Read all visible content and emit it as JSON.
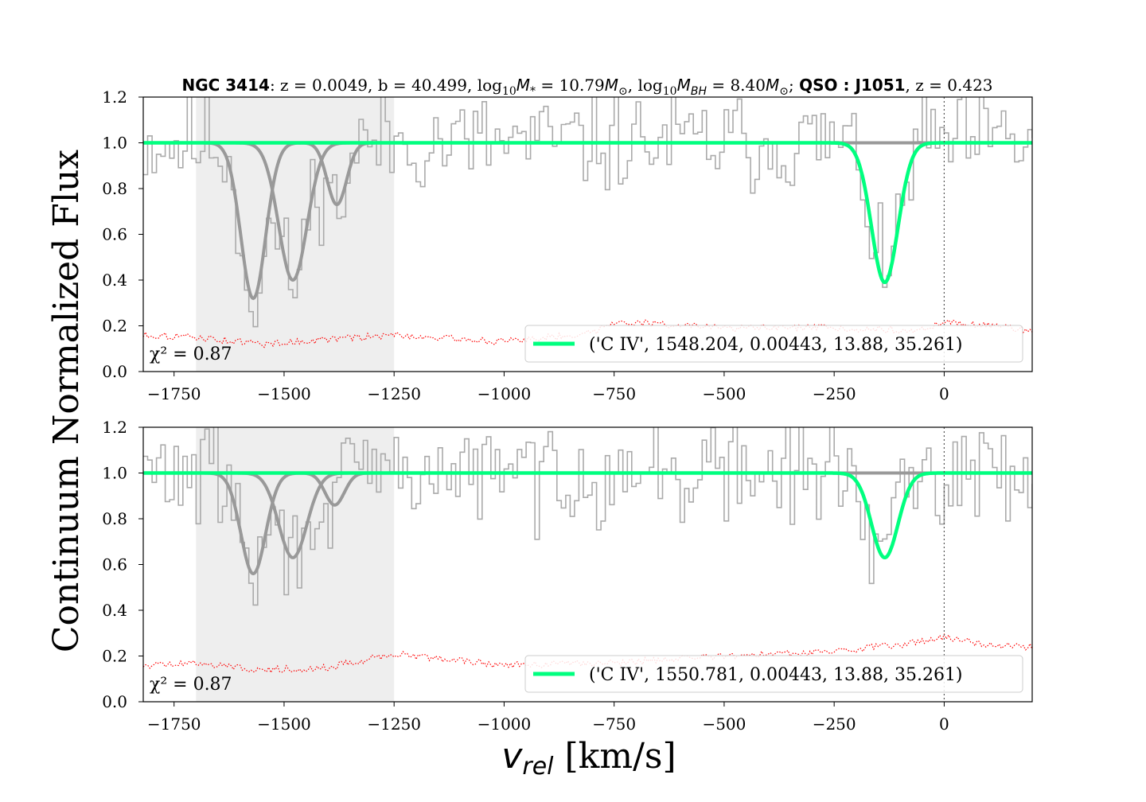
{
  "figure": {
    "title_parts": [
      {
        "text": "NGC 3414",
        "bold": true
      },
      {
        "text": ": z = 0.0049, b = 40.499, log",
        "bold": false
      },
      {
        "text": "10",
        "sub": true
      },
      {
        "text": "M",
        "italic": true
      },
      {
        "text": "*",
        "sub": true
      },
      {
        "text": " = 10.79",
        "bold": false
      },
      {
        "text": "M",
        "italic": true
      },
      {
        "text": "⊙",
        "sub": true
      },
      {
        "text": ", log",
        "bold": false
      },
      {
        "text": "10",
        "sub": true
      },
      {
        "text": "M",
        "italic": true
      },
      {
        "text": "BH",
        "sub": true,
        "italic": true
      },
      {
        "text": " = 8.40",
        "bold": false
      },
      {
        "text": "M",
        "italic": true
      },
      {
        "text": "⊙",
        "sub": true
      },
      {
        "text": "; ",
        "bold": false
      },
      {
        "text": "QSO : J1051",
        "bold": true
      },
      {
        "text": ", z = 0.423",
        "bold": false
      }
    ],
    "ylabel": "Continuum Normalized Flux",
    "xlabel_var": "v",
    "xlabel_sub": "rel",
    "xlabel_unit": " [km/s]"
  },
  "colors": {
    "data_step": "#aaaaaa",
    "component": "#999999",
    "fit": "#00ff7f",
    "error": "#ff0000",
    "shade": "#eeeeee",
    "axis": "#000000"
  },
  "chart_data": [
    {
      "type": "line",
      "xlim": [
        -1820,
        200
      ],
      "ylim": [
        0.0,
        1.2
      ],
      "xticks": [
        -1750,
        -1500,
        -1250,
        -1000,
        -750,
        -500,
        -250,
        0
      ],
      "xtick_labels": [
        "−1750",
        "−1500",
        "−1250",
        "−1000",
        "−750",
        "−500",
        "−250",
        "0"
      ],
      "yticks": [
        0.0,
        0.2,
        0.4,
        0.6,
        0.8,
        1.0,
        1.2
      ],
      "ytick_labels": [
        "0.0",
        "0.2",
        "0.4",
        "0.6",
        "0.8",
        "1.0",
        "1.2"
      ],
      "shaded_range": [
        -1700,
        -1250
      ],
      "vline_x": 0,
      "chi2_label": "χ² = 0.87",
      "legend_label": "('C IV', 1548.204, 0.00443, 13.88, 35.261)",
      "legend_loc": "lower right",
      "components": [
        {
          "center": -1570,
          "depth": 0.68,
          "sigma": 28
        },
        {
          "center": -1480,
          "depth": 0.6,
          "sigma": 32
        },
        {
          "center": -1380,
          "depth": 0.27,
          "sigma": 22
        },
        {
          "center": -135,
          "depth": 0.61,
          "sigma": 30
        }
      ],
      "fit_component_index": 3,
      "error_level": [
        {
          "x": -1820,
          "y": 0.16
        },
        {
          "x": -1700,
          "y": 0.15
        },
        {
          "x": -1550,
          "y": 0.12
        },
        {
          "x": -1400,
          "y": 0.14
        },
        {
          "x": -1250,
          "y": 0.16
        },
        {
          "x": -1000,
          "y": 0.13
        },
        {
          "x": -800,
          "y": 0.17
        },
        {
          "x": -750,
          "y": 0.22
        },
        {
          "x": -500,
          "y": 0.19
        },
        {
          "x": -250,
          "y": 0.19
        },
        {
          "x": -50,
          "y": 0.18
        },
        {
          "x": 0,
          "y": 0.22
        },
        {
          "x": 100,
          "y": 0.2
        },
        {
          "x": 200,
          "y": 0.18
        }
      ],
      "flux_seed": 11
    },
    {
      "type": "line",
      "xlim": [
        -1820,
        200
      ],
      "ylim": [
        0.0,
        1.2
      ],
      "xticks": [
        -1750,
        -1500,
        -1250,
        -1000,
        -750,
        -500,
        -250,
        0
      ],
      "xtick_labels": [
        "−1750",
        "−1500",
        "−1250",
        "−1000",
        "−750",
        "−500",
        "−250",
        "0"
      ],
      "yticks": [
        0.0,
        0.2,
        0.4,
        0.6,
        0.8,
        1.0,
        1.2
      ],
      "ytick_labels": [
        "0.0",
        "0.2",
        "0.4",
        "0.6",
        "0.8",
        "1.0",
        "1.2"
      ],
      "shaded_range": [
        -1700,
        -1250
      ],
      "vline_x": 0,
      "chi2_label": "χ² = 0.87",
      "legend_label": "('C IV', 1550.781, 0.00443, 13.88, 35.261)",
      "legend_loc": "lower right",
      "components": [
        {
          "center": -1570,
          "depth": 0.44,
          "sigma": 28
        },
        {
          "center": -1480,
          "depth": 0.37,
          "sigma": 32
        },
        {
          "center": -1385,
          "depth": 0.14,
          "sigma": 22
        },
        {
          "center": -135,
          "depth": 0.37,
          "sigma": 30
        }
      ],
      "fit_component_index": 3,
      "error_level": [
        {
          "x": -1820,
          "y": 0.16
        },
        {
          "x": -1700,
          "y": 0.17
        },
        {
          "x": -1550,
          "y": 0.14
        },
        {
          "x": -1400,
          "y": 0.15
        },
        {
          "x": -1250,
          "y": 0.21
        },
        {
          "x": -1000,
          "y": 0.16
        },
        {
          "x": -750,
          "y": 0.17
        },
        {
          "x": -500,
          "y": 0.2
        },
        {
          "x": -250,
          "y": 0.22
        },
        {
          "x": -100,
          "y": 0.25
        },
        {
          "x": 0,
          "y": 0.28
        },
        {
          "x": 100,
          "y": 0.25
        },
        {
          "x": 200,
          "y": 0.24
        }
      ],
      "flux_seed": 29
    }
  ]
}
